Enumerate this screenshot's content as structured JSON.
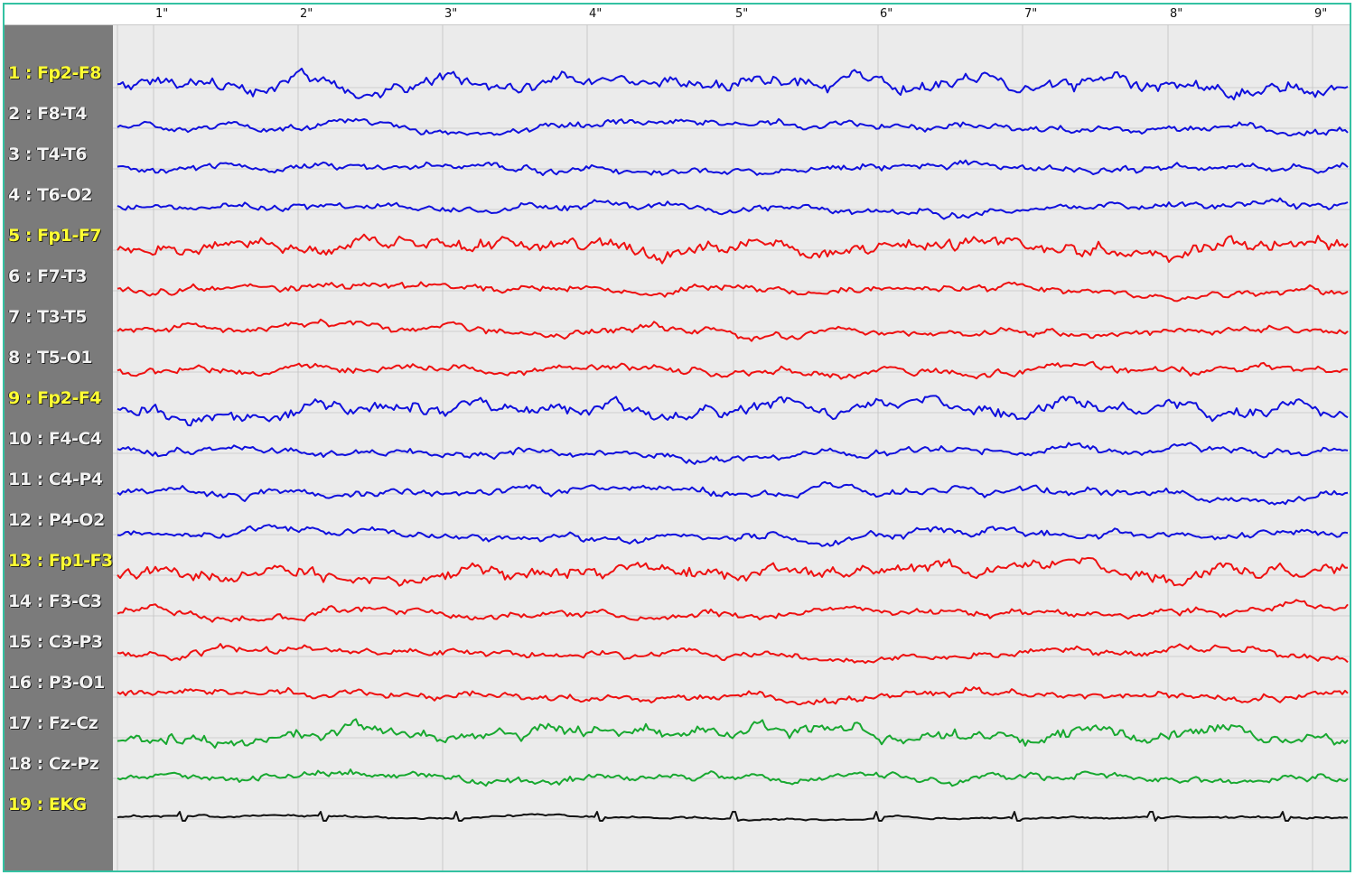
{
  "time_ticks": [
    "1\"",
    "2\"",
    "3\"",
    "4\"",
    "5\"",
    "6\"",
    "7\"",
    "8\"",
    "9\""
  ],
  "colors": {
    "border": "#34c1a2",
    "background": "#ebebeb",
    "label_panel": "#7b7b7b",
    "label_highlight": "#ffff33",
    "label_normal": "#f2f2f2",
    "blue": "#1010dd",
    "red": "#ee1111",
    "green": "#18a830",
    "black": "#111111"
  },
  "channels": [
    {
      "label": "1 : Fp2-F8",
      "color": "blue",
      "highlight": true
    },
    {
      "label": "2 : F8-T4",
      "color": "blue",
      "highlight": false
    },
    {
      "label": "3 : T4-T6",
      "color": "blue",
      "highlight": false
    },
    {
      "label": "4 : T6-O2",
      "color": "blue",
      "highlight": false
    },
    {
      "label": "5 : Fp1-F7",
      "color": "red",
      "highlight": true
    },
    {
      "label": "6 : F7-T3",
      "color": "red",
      "highlight": false
    },
    {
      "label": "7 : T3-T5",
      "color": "red",
      "highlight": false
    },
    {
      "label": "8 : T5-O1",
      "color": "red",
      "highlight": false
    },
    {
      "label": "9 : Fp2-F4",
      "color": "blue",
      "highlight": true
    },
    {
      "label": "10 : F4-C4",
      "color": "blue",
      "highlight": false
    },
    {
      "label": "11 : C4-P4",
      "color": "blue",
      "highlight": false
    },
    {
      "label": "12 : P4-O2",
      "color": "blue",
      "highlight": false
    },
    {
      "label": "13 : Fp1-F3",
      "color": "red",
      "highlight": true
    },
    {
      "label": "14 : F3-C3",
      "color": "red",
      "highlight": false
    },
    {
      "label": "15 : C3-P3",
      "color": "red",
      "highlight": false
    },
    {
      "label": "16 : P3-O1",
      "color": "red",
      "highlight": false
    },
    {
      "label": "17 : Fz-Cz",
      "color": "green",
      "highlight": false
    },
    {
      "label": "18 : Cz-Pz",
      "color": "green",
      "highlight": false
    },
    {
      "label": "19 : EKG",
      "color": "black",
      "highlight": true
    }
  ]
}
